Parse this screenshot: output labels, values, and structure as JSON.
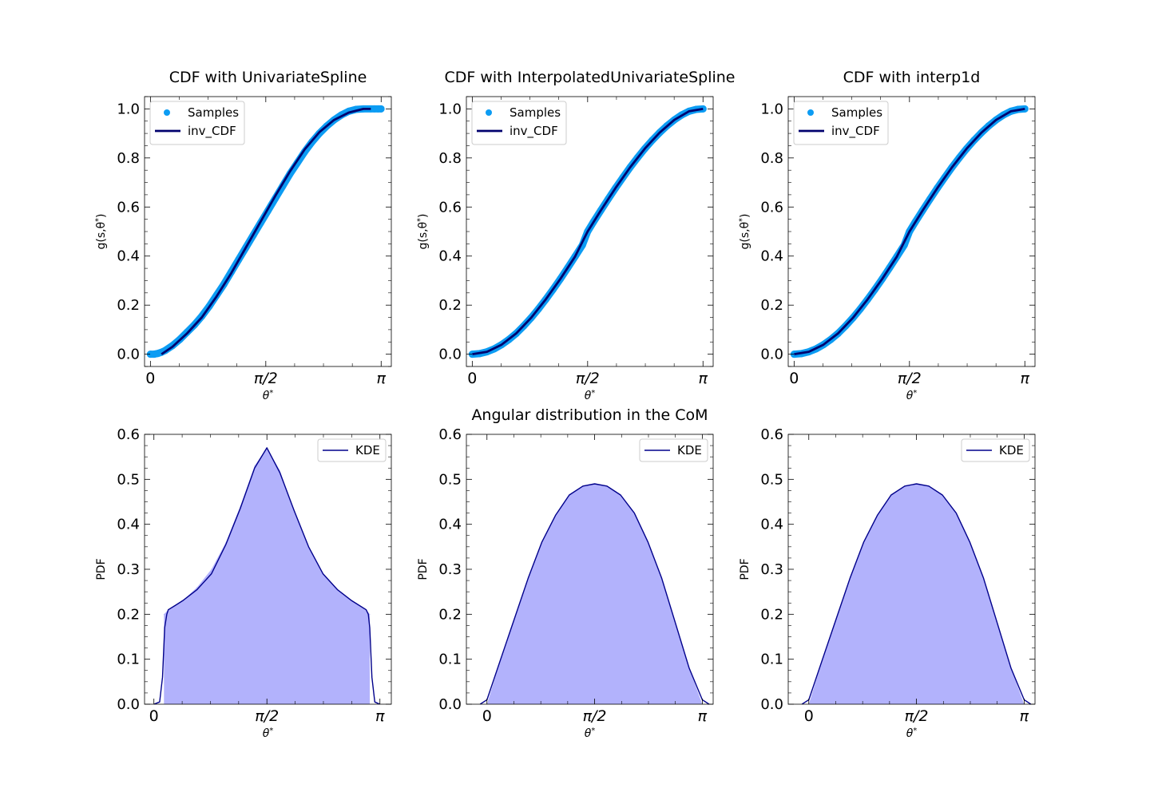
{
  "chart_data": [
    {
      "type": "scatter",
      "title": "CDF with UnivariateSpline",
      "xlabel": "θ*",
      "ylabel": "g(s,θ*)",
      "xlim": [
        -0.08,
        3.28
      ],
      "ylim": [
        -0.05,
        1.05
      ],
      "xticks": {
        "values": [
          0,
          1.5708,
          3.1416
        ],
        "labels": [
          "0",
          "π/2",
          "π"
        ]
      },
      "yticks": {
        "values": [
          0.0,
          0.2,
          0.4,
          0.6,
          0.8,
          1.0
        ],
        "labels": [
          "0.0",
          "0.2",
          "0.4",
          "0.6",
          "0.8",
          "1.0"
        ]
      },
      "legend": {
        "position": "upper-left",
        "entries": [
          "Samples",
          "inv_CDF"
        ]
      },
      "series": [
        {
          "name": "Samples",
          "kind": "scatter",
          "color": "#0c9cf3",
          "x": [
            0.0,
            0.05,
            0.1,
            0.15,
            0.2,
            0.3,
            0.4,
            0.5,
            0.6,
            0.7,
            0.8,
            0.9,
            1.0,
            1.1,
            1.2,
            1.3,
            1.4,
            1.5,
            1.6,
            1.7,
            1.8,
            1.9,
            2.0,
            2.1,
            2.2,
            2.3,
            2.4,
            2.5,
            2.6,
            2.7,
            2.8,
            2.9,
            3.0,
            3.05,
            3.1,
            3.14
          ],
          "y": [
            0.0,
            0.0,
            0.003,
            0.008,
            0.015,
            0.035,
            0.06,
            0.09,
            0.12,
            0.155,
            0.195,
            0.24,
            0.285,
            0.335,
            0.385,
            0.435,
            0.485,
            0.535,
            0.585,
            0.635,
            0.685,
            0.735,
            0.78,
            0.825,
            0.865,
            0.9,
            0.93,
            0.955,
            0.975,
            0.99,
            0.998,
            1.0,
            1.0,
            1.0,
            1.0,
            1.0
          ]
        },
        {
          "name": "inv_CDF",
          "kind": "line",
          "color": "#00006e",
          "x": [
            0.15,
            0.3,
            0.5,
            0.7,
            0.9,
            1.1,
            1.3,
            1.5,
            1.7,
            1.9,
            2.1,
            2.3,
            2.5,
            2.7,
            2.9,
            3.0
          ],
          "y": [
            0.0,
            0.03,
            0.085,
            0.15,
            0.235,
            0.33,
            0.435,
            0.54,
            0.645,
            0.745,
            0.835,
            0.905,
            0.955,
            0.985,
            1.0,
            1.0
          ]
        }
      ]
    },
    {
      "type": "scatter",
      "title": "CDF with InterpolatedUnivariateSpline",
      "xlabel": "θ*",
      "ylabel": "g(s,θ*)",
      "xlim": [
        -0.08,
        3.28
      ],
      "ylim": [
        -0.05,
        1.05
      ],
      "xticks": {
        "values": [
          0,
          1.5708,
          3.1416
        ],
        "labels": [
          "0",
          "π/2",
          "π"
        ]
      },
      "yticks": {
        "values": [
          0.0,
          0.2,
          0.4,
          0.6,
          0.8,
          1.0
        ],
        "labels": [
          "0.0",
          "0.2",
          "0.4",
          "0.6",
          "0.8",
          "1.0"
        ]
      },
      "legend": {
        "position": "upper-left",
        "entries": [
          "Samples",
          "inv_CDF"
        ]
      },
      "series": [
        {
          "name": "Samples",
          "kind": "scatter",
          "color": "#0c9cf3",
          "x": [
            0.0,
            0.1,
            0.2,
            0.3,
            0.4,
            0.5,
            0.6,
            0.7,
            0.8,
            0.9,
            1.0,
            1.1,
            1.2,
            1.3,
            1.4,
            1.5,
            1.5708,
            1.65,
            1.75,
            1.85,
            1.95,
            2.05,
            2.15,
            2.25,
            2.35,
            2.45,
            2.55,
            2.65,
            2.75,
            2.85,
            2.95,
            3.05,
            3.1416
          ],
          "y": [
            0.0,
            0.0025,
            0.01,
            0.022,
            0.039,
            0.06,
            0.085,
            0.115,
            0.148,
            0.184,
            0.223,
            0.264,
            0.307,
            0.352,
            0.398,
            0.445,
            0.5,
            0.539,
            0.586,
            0.632,
            0.677,
            0.72,
            0.762,
            0.801,
            0.838,
            0.872,
            0.903,
            0.931,
            0.955,
            0.975,
            0.99,
            0.998,
            1.0
          ]
        },
        {
          "name": "inv_CDF",
          "kind": "line",
          "color": "#00006e",
          "x": [
            0.0,
            0.2,
            0.4,
            0.6,
            0.8,
            1.0,
            1.2,
            1.4,
            1.5708,
            1.75,
            1.95,
            2.15,
            2.35,
            2.55,
            2.75,
            2.95,
            3.1416
          ],
          "y": [
            0.0,
            0.01,
            0.039,
            0.085,
            0.148,
            0.223,
            0.307,
            0.398,
            0.5,
            0.586,
            0.677,
            0.762,
            0.838,
            0.903,
            0.955,
            0.99,
            1.0
          ]
        }
      ]
    },
    {
      "type": "scatter",
      "title": "CDF with interp1d",
      "xlabel": "θ*",
      "ylabel": "g(s,θ*)",
      "xlim": [
        -0.08,
        3.28
      ],
      "ylim": [
        -0.05,
        1.05
      ],
      "xticks": {
        "values": [
          0,
          1.5708,
          3.1416
        ],
        "labels": [
          "0",
          "π/2",
          "π"
        ]
      },
      "yticks": {
        "values": [
          0.0,
          0.2,
          0.4,
          0.6,
          0.8,
          1.0
        ],
        "labels": [
          "0.0",
          "0.2",
          "0.4",
          "0.6",
          "0.8",
          "1.0"
        ]
      },
      "legend": {
        "position": "upper-left",
        "entries": [
          "Samples",
          "inv_CDF"
        ]
      },
      "series": [
        {
          "name": "Samples",
          "kind": "scatter",
          "color": "#0c9cf3",
          "x": [
            0.0,
            0.1,
            0.2,
            0.3,
            0.4,
            0.5,
            0.6,
            0.7,
            0.8,
            0.9,
            1.0,
            1.1,
            1.2,
            1.3,
            1.4,
            1.5,
            1.5708,
            1.65,
            1.75,
            1.85,
            1.95,
            2.05,
            2.15,
            2.25,
            2.35,
            2.45,
            2.55,
            2.65,
            2.75,
            2.85,
            2.95,
            3.05,
            3.1416
          ],
          "y": [
            0.0,
            0.0025,
            0.01,
            0.022,
            0.039,
            0.06,
            0.085,
            0.115,
            0.148,
            0.184,
            0.223,
            0.264,
            0.307,
            0.352,
            0.398,
            0.445,
            0.5,
            0.539,
            0.586,
            0.632,
            0.677,
            0.72,
            0.762,
            0.801,
            0.838,
            0.872,
            0.903,
            0.931,
            0.955,
            0.975,
            0.99,
            0.998,
            1.0
          ]
        },
        {
          "name": "inv_CDF",
          "kind": "line",
          "color": "#00006e",
          "x": [
            0.0,
            0.2,
            0.4,
            0.6,
            0.8,
            1.0,
            1.2,
            1.4,
            1.5708,
            1.75,
            1.95,
            2.15,
            2.35,
            2.55,
            2.75,
            2.95,
            3.1416
          ],
          "y": [
            0.0,
            0.01,
            0.039,
            0.085,
            0.148,
            0.223,
            0.307,
            0.398,
            0.5,
            0.586,
            0.677,
            0.762,
            0.838,
            0.903,
            0.955,
            0.99,
            1.0
          ]
        }
      ]
    },
    {
      "type": "area",
      "title": "",
      "xlabel": "θ*",
      "ylabel": "PDF",
      "xlim": [
        -0.13,
        3.3
      ],
      "ylim": [
        0.0,
        0.6
      ],
      "xticks": {
        "values": [
          0,
          1.5708,
          3.1416
        ],
        "labels": [
          "0",
          "π/2",
          "π"
        ]
      },
      "yticks": {
        "values": [
          0.0,
          0.1,
          0.2,
          0.3,
          0.4,
          0.5,
          0.6
        ],
        "labels": [
          "0.0",
          "0.1",
          "0.2",
          "0.3",
          "0.4",
          "0.5",
          "0.6"
        ]
      },
      "legend": {
        "position": "upper-right",
        "entries": [
          "KDE"
        ]
      },
      "series": [
        {
          "name": "histogram",
          "kind": "histogram",
          "color": "#b2b2fc",
          "x": [
            0.14,
            0.2,
            0.4,
            0.6,
            0.8,
            1.0,
            1.2,
            1.4,
            1.5708,
            1.75,
            1.95,
            2.15,
            2.35,
            2.55,
            2.75,
            2.95,
            3.0
          ],
          "y": [
            0.2,
            0.21,
            0.23,
            0.26,
            0.3,
            0.36,
            0.44,
            0.53,
            0.57,
            0.52,
            0.43,
            0.35,
            0.29,
            0.255,
            0.23,
            0.21,
            0.2
          ]
        },
        {
          "name": "KDE",
          "kind": "line",
          "color": "#00008b",
          "x": [
            0.0,
            0.08,
            0.12,
            0.15,
            0.18,
            0.2,
            0.3,
            0.4,
            0.6,
            0.8,
            1.0,
            1.2,
            1.4,
            1.5708,
            1.75,
            1.95,
            2.15,
            2.35,
            2.55,
            2.75,
            2.95,
            2.98,
            3.0,
            3.03,
            3.07,
            3.14
          ],
          "y": [
            0.0,
            0.005,
            0.06,
            0.17,
            0.2,
            0.21,
            0.22,
            0.23,
            0.255,
            0.29,
            0.355,
            0.435,
            0.525,
            0.57,
            0.515,
            0.43,
            0.35,
            0.29,
            0.255,
            0.23,
            0.21,
            0.2,
            0.17,
            0.06,
            0.005,
            0.0
          ]
        }
      ]
    },
    {
      "type": "area",
      "title": "Angular distribution in the CoM",
      "xlabel": "θ*",
      "ylabel": "PDF",
      "xlim": [
        -0.3,
        3.3
      ],
      "ylim": [
        0.0,
        0.6
      ],
      "xticks": {
        "values": [
          0,
          1.5708,
          3.1416
        ],
        "labels": [
          "0",
          "π/2",
          "π"
        ]
      },
      "yticks": {
        "values": [
          0.0,
          0.1,
          0.2,
          0.3,
          0.4,
          0.5,
          0.6
        ],
        "labels": [
          "0.0",
          "0.1",
          "0.2",
          "0.3",
          "0.4",
          "0.5",
          "0.6"
        ]
      },
      "legend": {
        "position": "upper-right",
        "entries": [
          "KDE"
        ]
      },
      "series": [
        {
          "name": "histogram",
          "kind": "histogram",
          "color": "#b2b2fc",
          "x": [
            0.0,
            0.2,
            0.4,
            0.6,
            0.8,
            1.0,
            1.2,
            1.4,
            1.5708,
            1.75,
            1.95,
            2.15,
            2.35,
            2.55,
            2.75,
            2.95,
            3.1416
          ],
          "y": [
            0.0,
            0.1,
            0.19,
            0.28,
            0.36,
            0.42,
            0.465,
            0.485,
            0.49,
            0.485,
            0.465,
            0.425,
            0.36,
            0.28,
            0.18,
            0.08,
            0.0
          ]
        },
        {
          "name": "KDE",
          "kind": "line",
          "color": "#00008b",
          "x": [
            -0.1,
            0.0,
            0.2,
            0.4,
            0.6,
            0.8,
            1.0,
            1.2,
            1.4,
            1.5708,
            1.75,
            1.95,
            2.15,
            2.35,
            2.55,
            2.75,
            2.95,
            3.1416,
            3.24
          ],
          "y": [
            0.0,
            0.01,
            0.1,
            0.19,
            0.28,
            0.36,
            0.42,
            0.465,
            0.485,
            0.49,
            0.485,
            0.465,
            0.425,
            0.36,
            0.28,
            0.18,
            0.08,
            0.01,
            0.0
          ]
        }
      ]
    },
    {
      "type": "area",
      "title": "",
      "xlabel": "θ*",
      "ylabel": "PDF",
      "xlim": [
        -0.3,
        3.3
      ],
      "ylim": [
        0.0,
        0.6
      ],
      "xticks": {
        "values": [
          0,
          1.5708,
          3.1416
        ],
        "labels": [
          "0",
          "π/2",
          "π"
        ]
      },
      "yticks": {
        "values": [
          0.0,
          0.1,
          0.2,
          0.3,
          0.4,
          0.5,
          0.6
        ],
        "labels": [
          "0.0",
          "0.1",
          "0.2",
          "0.3",
          "0.4",
          "0.5",
          "0.6"
        ]
      },
      "legend": {
        "position": "upper-right",
        "entries": [
          "KDE"
        ]
      },
      "series": [
        {
          "name": "histogram",
          "kind": "histogram",
          "color": "#b2b2fc",
          "x": [
            0.0,
            0.2,
            0.4,
            0.6,
            0.8,
            1.0,
            1.2,
            1.4,
            1.5708,
            1.75,
            1.95,
            2.15,
            2.35,
            2.55,
            2.75,
            2.95,
            3.1416
          ],
          "y": [
            0.0,
            0.1,
            0.19,
            0.28,
            0.36,
            0.42,
            0.465,
            0.485,
            0.49,
            0.485,
            0.465,
            0.425,
            0.36,
            0.28,
            0.18,
            0.08,
            0.0
          ]
        },
        {
          "name": "KDE",
          "kind": "line",
          "color": "#00008b",
          "x": [
            -0.1,
            0.0,
            0.2,
            0.4,
            0.6,
            0.8,
            1.0,
            1.2,
            1.4,
            1.5708,
            1.75,
            1.95,
            2.15,
            2.35,
            2.55,
            2.75,
            2.95,
            3.1416,
            3.24
          ],
          "y": [
            0.0,
            0.01,
            0.1,
            0.19,
            0.28,
            0.36,
            0.42,
            0.465,
            0.485,
            0.49,
            0.485,
            0.465,
            0.425,
            0.36,
            0.28,
            0.18,
            0.08,
            0.01,
            0.0
          ]
        }
      ]
    }
  ]
}
